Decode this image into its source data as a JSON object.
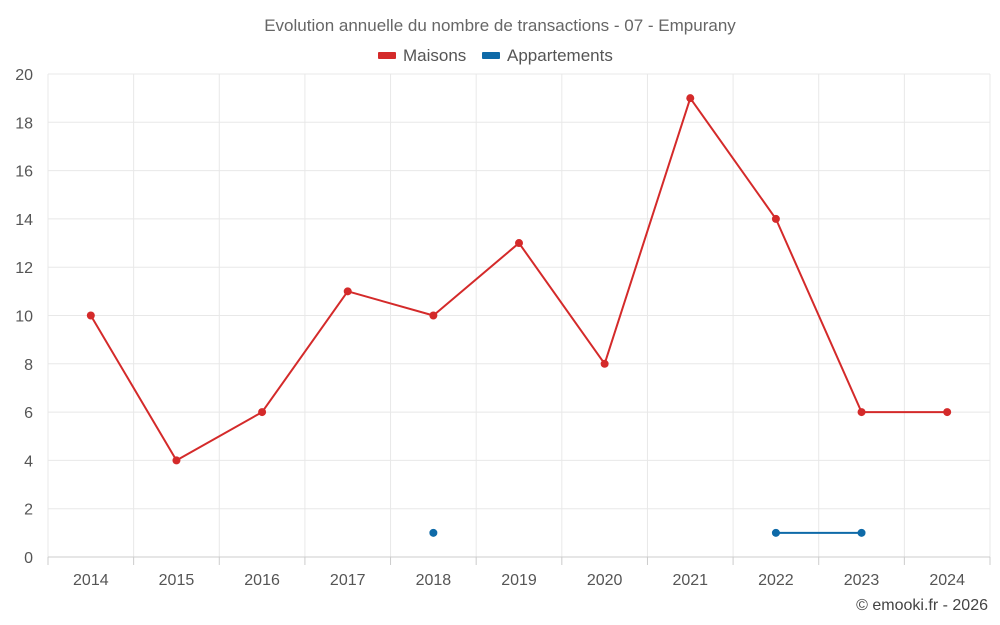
{
  "chart_data": {
    "type": "line",
    "title": "Evolution annuelle du nombre de transactions - 07 - Empurany",
    "categories": [
      "2014",
      "2015",
      "2016",
      "2017",
      "2018",
      "2019",
      "2020",
      "2021",
      "2022",
      "2023",
      "2024"
    ],
    "series": [
      {
        "name": "Maisons",
        "color": "#d42a2a",
        "values": [
          10,
          4,
          6,
          11,
          10,
          13,
          8,
          19,
          14,
          6,
          6
        ]
      },
      {
        "name": "Appartements",
        "color": "#0e6aa8",
        "values": [
          null,
          null,
          null,
          null,
          1,
          null,
          null,
          null,
          1,
          1,
          null
        ]
      }
    ],
    "ylim": [
      0,
      20
    ],
    "yticks": [
      0,
      2,
      4,
      6,
      8,
      10,
      12,
      14,
      16,
      18,
      20
    ],
    "grid": true,
    "legend": "top-center",
    "xlabel": "",
    "ylabel": ""
  },
  "credit": "© emooki.fr - 2026"
}
